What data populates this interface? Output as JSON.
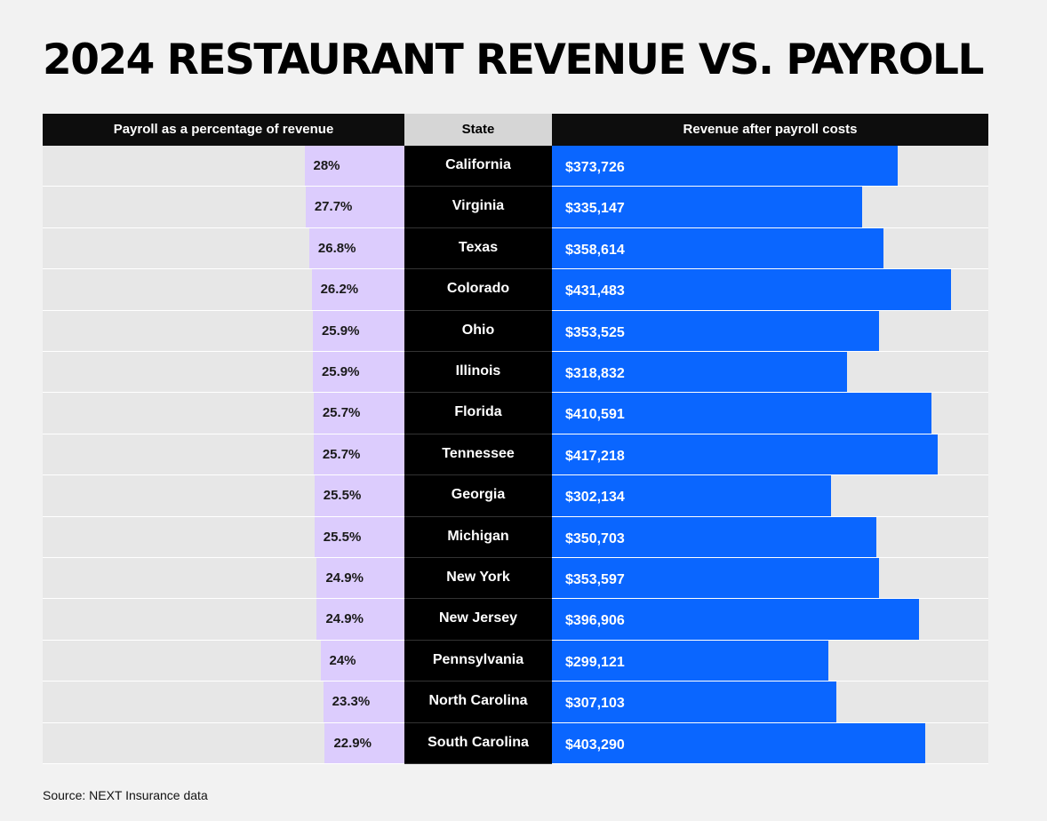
{
  "title": "2024 RESTAURANT REVENUE VS. PAYROLL",
  "source": "Source: NEXT Insurance data",
  "colors": {
    "payroll_bar": "#dcccfd",
    "revenue_bar": "#0a66ff",
    "header_dark": "#0d0d0d",
    "header_state": "#d6d6d6"
  },
  "chart_data": {
    "type": "bar",
    "headers": {
      "left": "Payroll as a percentage of revenue",
      "middle": "State",
      "right": "Revenue after payroll costs"
    },
    "rows": [
      {
        "state": "California",
        "payroll_pct": 28.0,
        "payroll_pct_label": "28%",
        "revenue": 373726,
        "revenue_label": "$373,726"
      },
      {
        "state": "Virginia",
        "payroll_pct": 27.7,
        "payroll_pct_label": "27.7%",
        "revenue": 335147,
        "revenue_label": "$335,147"
      },
      {
        "state": "Texas",
        "payroll_pct": 26.8,
        "payroll_pct_label": "26.8%",
        "revenue": 358614,
        "revenue_label": "$358,614"
      },
      {
        "state": "Colorado",
        "payroll_pct": 26.2,
        "payroll_pct_label": "26.2%",
        "revenue": 431483,
        "revenue_label": "$431,483"
      },
      {
        "state": "Ohio",
        "payroll_pct": 25.9,
        "payroll_pct_label": "25.9%",
        "revenue": 353525,
        "revenue_label": "$353,525"
      },
      {
        "state": "Illinois",
        "payroll_pct": 25.9,
        "payroll_pct_label": "25.9%",
        "revenue": 318832,
        "revenue_label": "$318,832"
      },
      {
        "state": "Florida",
        "payroll_pct": 25.7,
        "payroll_pct_label": "25.7%",
        "revenue": 410591,
        "revenue_label": "$410,591"
      },
      {
        "state": "Tennessee",
        "payroll_pct": 25.7,
        "payroll_pct_label": "25.7%",
        "revenue": 417218,
        "revenue_label": "$417,218"
      },
      {
        "state": "Georgia",
        "payroll_pct": 25.5,
        "payroll_pct_label": "25.5%",
        "revenue": 302134,
        "revenue_label": "$302,134"
      },
      {
        "state": "Michigan",
        "payroll_pct": 25.5,
        "payroll_pct_label": "25.5%",
        "revenue": 350703,
        "revenue_label": "$350,703"
      },
      {
        "state": "New York",
        "payroll_pct": 24.9,
        "payroll_pct_label": "24.9%",
        "revenue": 353597,
        "revenue_label": "$353,597"
      },
      {
        "state": "New Jersey",
        "payroll_pct": 24.9,
        "payroll_pct_label": "24.9%",
        "revenue": 396906,
        "revenue_label": "$396,906"
      },
      {
        "state": "Pennsylvania",
        "payroll_pct": 24.0,
        "payroll_pct_label": "24%",
        "revenue": 299121,
        "revenue_label": "$299,121"
      },
      {
        "state": "North Carolina",
        "payroll_pct": 23.3,
        "payroll_pct_label": "23.3%",
        "revenue": 307103,
        "revenue_label": "$307,103"
      },
      {
        "state": "South Carolina",
        "payroll_pct": 22.9,
        "payroll_pct_label": "22.9%",
        "revenue": 403290,
        "revenue_label": "$403,290"
      }
    ]
  }
}
